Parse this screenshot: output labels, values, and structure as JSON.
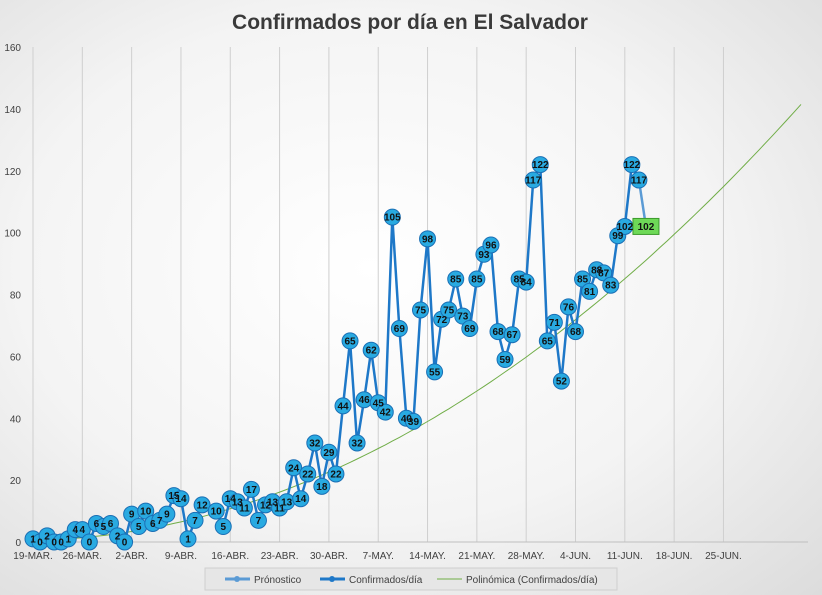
{
  "chart_data": {
    "type": "line",
    "title": "Confirmados por día en El Salvador",
    "xlabel": "",
    "ylabel": "",
    "ylim": [
      0,
      160
    ],
    "yticks": [
      0,
      20,
      40,
      60,
      80,
      100,
      120,
      140,
      160
    ],
    "grid": "vertical",
    "legend_position": "bottom",
    "x_start": "19-MAR.",
    "x_range_days": [
      0,
      110
    ],
    "x_ticks": [
      {
        "day": 0,
        "label": "19-MAR."
      },
      {
        "day": 7,
        "label": "26-MAR."
      },
      {
        "day": 14,
        "label": "2-ABR."
      },
      {
        "day": 21,
        "label": "9-ABR."
      },
      {
        "day": 28,
        "label": "16-ABR."
      },
      {
        "day": 35,
        "label": "23-ABR."
      },
      {
        "day": 42,
        "label": "30-ABR."
      },
      {
        "day": 49,
        "label": "7-MAY."
      },
      {
        "day": 56,
        "label": "14-MAY."
      },
      {
        "day": 63,
        "label": "21-MAY."
      },
      {
        "day": 70,
        "label": "28-MAY."
      },
      {
        "day": 77,
        "label": "4-JUN."
      },
      {
        "day": 84,
        "label": "11-JUN."
      },
      {
        "day": 91,
        "label": "18-JUN."
      },
      {
        "day": 98,
        "label": "25-JUN."
      }
    ],
    "series": [
      {
        "name": "Confirmados/día",
        "color": "#1e78c8",
        "marker_color": "#29aae1",
        "points": [
          [
            0,
            1
          ],
          [
            1,
            0
          ],
          [
            2,
            2
          ],
          [
            3,
            0
          ],
          [
            4,
            0
          ],
          [
            5,
            1
          ],
          [
            6,
            4
          ],
          [
            7,
            4
          ],
          [
            8,
            0
          ],
          [
            9,
            6
          ],
          [
            10,
            5
          ],
          [
            11,
            6
          ],
          [
            12,
            2
          ],
          [
            13,
            0
          ],
          [
            14,
            9
          ],
          [
            15,
            5
          ],
          [
            16,
            10
          ],
          [
            17,
            6
          ],
          [
            18,
            7
          ],
          [
            19,
            9
          ],
          [
            20,
            15
          ],
          [
            21,
            14
          ],
          [
            22,
            1
          ],
          [
            23,
            7
          ],
          [
            24,
            12
          ],
          [
            26,
            10
          ],
          [
            27,
            5
          ],
          [
            28,
            14
          ],
          [
            29,
            13
          ],
          [
            30,
            11
          ],
          [
            31,
            17
          ],
          [
            32,
            7
          ],
          [
            33,
            12
          ],
          [
            34,
            13
          ],
          [
            35,
            11
          ],
          [
            36,
            13
          ],
          [
            37,
            24
          ],
          [
            38,
            14
          ],
          [
            39,
            22
          ],
          [
            40,
            32
          ],
          [
            41,
            18
          ],
          [
            42,
            29
          ],
          [
            43,
            22
          ],
          [
            44,
            44
          ],
          [
            45,
            65
          ],
          [
            46,
            32
          ],
          [
            47,
            46
          ],
          [
            48,
            62
          ],
          [
            49,
            45
          ],
          [
            50,
            42
          ],
          [
            51,
            105
          ],
          [
            52,
            69
          ],
          [
            53,
            40
          ],
          [
            54,
            39
          ],
          [
            55,
            75
          ],
          [
            56,
            98
          ],
          [
            57,
            55
          ],
          [
            58,
            72
          ],
          [
            59,
            75
          ],
          [
            60,
            85
          ],
          [
            61,
            73
          ],
          [
            62,
            69
          ],
          [
            63,
            85
          ],
          [
            64,
            93
          ],
          [
            65,
            96
          ],
          [
            66,
            68
          ],
          [
            67,
            59
          ],
          [
            68,
            67
          ],
          [
            69,
            85
          ],
          [
            70,
            84
          ],
          [
            71,
            117
          ],
          [
            72,
            122
          ],
          [
            73,
            65
          ],
          [
            74,
            71
          ],
          [
            75,
            52
          ],
          [
            76,
            76
          ],
          [
            77,
            68
          ],
          [
            78,
            85
          ],
          [
            79,
            81
          ],
          [
            80,
            88
          ],
          [
            81,
            87
          ],
          [
            82,
            83
          ],
          [
            83,
            99
          ],
          [
            84,
            102
          ],
          [
            85,
            122
          ],
          [
            86,
            117
          ]
        ]
      },
      {
        "name": "Prónostico",
        "color": "#5b9bd5",
        "marker_color": "#6ed957",
        "points": [
          [
            86,
            117
          ],
          [
            87,
            102
          ]
        ]
      },
      {
        "name": "Polinómica (Confirmados/día)",
        "color": "#70ad47",
        "trend_coeffs": [
          0.5,
          0.046,
          0.01144
        ]
      }
    ],
    "data_labels": [
      [
        0,
        "1"
      ],
      [
        1,
        "0"
      ],
      [
        2,
        "2"
      ],
      [
        3,
        "0"
      ],
      [
        4,
        "0"
      ],
      [
        5,
        "1"
      ],
      [
        6,
        "4"
      ],
      [
        7,
        "4"
      ],
      [
        8,
        "0"
      ],
      [
        9,
        "6"
      ],
      [
        10,
        "5"
      ],
      [
        11,
        "6"
      ],
      [
        12,
        "2"
      ],
      [
        13,
        "0"
      ],
      [
        14,
        "9"
      ],
      [
        15,
        "5"
      ],
      [
        16,
        "10"
      ],
      [
        17,
        "6"
      ],
      [
        18,
        "7"
      ],
      [
        19,
        "9"
      ],
      [
        20,
        "15"
      ],
      [
        21,
        "14"
      ],
      [
        22,
        "1"
      ],
      [
        23,
        "7"
      ],
      [
        24,
        "12"
      ],
      [
        26,
        "10"
      ],
      [
        27,
        "5"
      ],
      [
        28,
        "14"
      ],
      [
        29,
        "13"
      ],
      [
        30,
        "11"
      ],
      [
        31,
        "17"
      ],
      [
        32,
        "7"
      ],
      [
        33,
        "12"
      ],
      [
        34,
        "13"
      ],
      [
        35,
        "11"
      ],
      [
        36,
        "13"
      ],
      [
        37,
        "24"
      ],
      [
        38,
        "14"
      ],
      [
        39,
        "22"
      ],
      [
        40,
        "32"
      ],
      [
        41,
        "18"
      ],
      [
        42,
        "29"
      ],
      [
        43,
        "22"
      ],
      [
        44,
        "44"
      ],
      [
        45,
        "65"
      ],
      [
        46,
        "32"
      ],
      [
        47,
        "46"
      ],
      [
        48,
        "62"
      ],
      [
        49,
        "45"
      ],
      [
        50,
        "42"
      ],
      [
        51,
        "105"
      ],
      [
        52,
        "69"
      ],
      [
        53,
        "40"
      ],
      [
        54,
        "39"
      ],
      [
        55,
        "75"
      ],
      [
        56,
        "98"
      ],
      [
        57,
        "55"
      ],
      [
        58,
        "72"
      ],
      [
        59,
        "75"
      ],
      [
        60,
        "85"
      ],
      [
        61,
        "73"
      ],
      [
        62,
        "69"
      ],
      [
        63,
        "85"
      ],
      [
        64,
        "93"
      ],
      [
        65,
        "96"
      ],
      [
        66,
        "68"
      ],
      [
        67,
        "59"
      ],
      [
        68,
        "67"
      ],
      [
        69,
        "85"
      ],
      [
        70,
        "84"
      ],
      [
        71,
        "117"
      ],
      [
        72,
        "122"
      ],
      [
        73,
        "65"
      ],
      [
        74,
        "71"
      ],
      [
        75,
        "52"
      ],
      [
        76,
        "76"
      ],
      [
        77,
        "68"
      ],
      [
        78,
        "85"
      ],
      [
        79,
        "81"
      ],
      [
        80,
        "88"
      ],
      [
        81,
        "87"
      ],
      [
        82,
        "83"
      ],
      [
        83,
        "99"
      ],
      [
        84,
        "102"
      ],
      [
        85,
        "122"
      ],
      [
        86,
        "117"
      ],
      [
        87,
        "102"
      ]
    ],
    "legend": [
      "Prónostico",
      "Confirmados/día",
      "Polinómica (Confirmados/día)"
    ]
  }
}
